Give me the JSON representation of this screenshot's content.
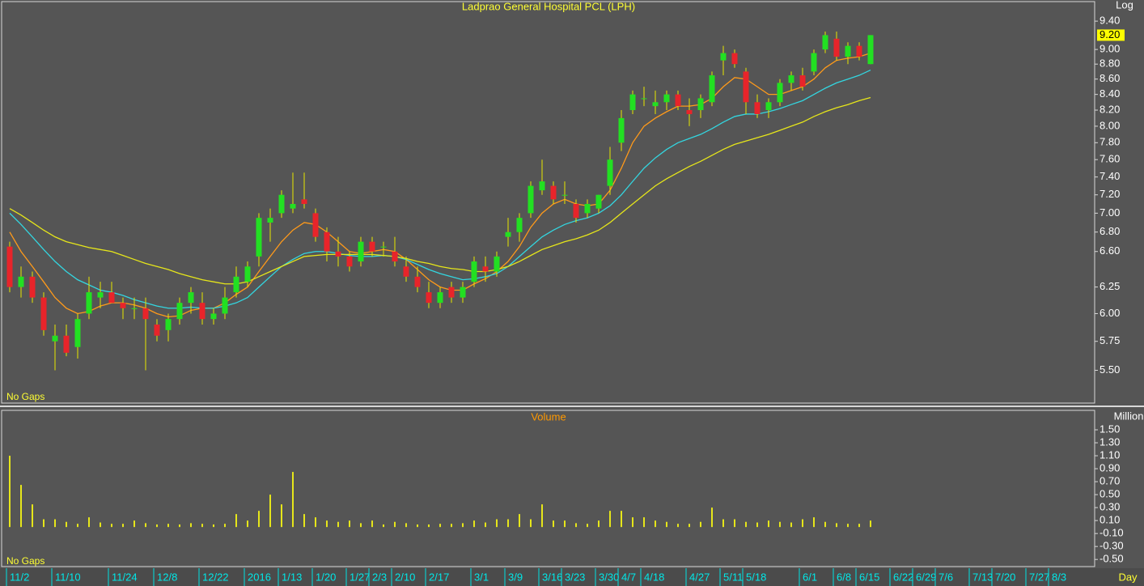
{
  "chart_data": [
    {
      "type": "candlestick",
      "title": "Ladprao General Hospital PCL (LPH)",
      "scale_label": "Log",
      "note": "No Gaps",
      "x_unit": "Day",
      "log_scale": true,
      "ylim": [
        5.23,
        9.71
      ],
      "yticks": [
        {
          "value": 9.4,
          "label": "9.40"
        },
        {
          "value": 9.0,
          "label": "9.00"
        },
        {
          "value": 8.8,
          "label": "8.80"
        },
        {
          "value": 8.6,
          "label": "8.60"
        },
        {
          "value": 8.4,
          "label": "8.40"
        },
        {
          "value": 8.2,
          "label": "8.20"
        },
        {
          "value": 8.0,
          "label": "8.00"
        },
        {
          "value": 7.8,
          "label": "7.80"
        },
        {
          "value": 7.6,
          "label": "7.60"
        },
        {
          "value": 7.4,
          "label": "7.40"
        },
        {
          "value": 7.2,
          "label": "7.20"
        },
        {
          "value": 7.0,
          "label": "7.00"
        },
        {
          "value": 6.8,
          "label": "6.80"
        },
        {
          "value": 6.6,
          "label": "6.60"
        },
        {
          "value": 6.25,
          "label": "6.25"
        },
        {
          "value": 6.0,
          "label": "6.00"
        },
        {
          "value": 5.75,
          "label": "5.75"
        },
        {
          "value": 5.5,
          "label": "5.50"
        }
      ],
      "last_price": {
        "value": 9.2,
        "label": "9.20"
      },
      "up_color": "#22e022",
      "down_color": "#e8242a",
      "wick_color": "#e6e600",
      "x": [
        "11/2",
        null,
        null,
        null,
        "11/10",
        null,
        null,
        null,
        null,
        "11/24",
        null,
        null,
        null,
        "12/8",
        null,
        null,
        null,
        "12/22",
        null,
        null,
        null,
        "2016",
        null,
        null,
        "1/13",
        null,
        null,
        "1/20",
        null,
        null,
        "1/27",
        null,
        "2/3",
        null,
        "2/10",
        null,
        null,
        "2/17",
        null,
        null,
        null,
        "3/1",
        null,
        null,
        "3/9",
        null,
        null,
        "3/16",
        null,
        "3/23",
        null,
        null,
        "3/30",
        null,
        "4/7",
        null,
        "4/18",
        null,
        null,
        null,
        "4/27",
        null,
        null,
        "5/11",
        null,
        "5/18",
        null,
        null,
        null,
        null,
        "6/1",
        null,
        null,
        "6/8",
        null,
        "6/15",
        null,
        null,
        "6/22",
        null,
        "6/29",
        null,
        "7/6",
        null,
        null,
        "7/13",
        null,
        "7/20",
        null,
        null,
        "7/27",
        null,
        "8/3",
        null,
        null,
        null
      ],
      "ohlc": [
        [
          6.65,
          6.7,
          6.2,
          6.25
        ],
        [
          6.25,
          6.45,
          6.15,
          6.35
        ],
        [
          6.35,
          6.4,
          6.1,
          6.15
        ],
        [
          6.15,
          6.2,
          5.8,
          5.85
        ],
        [
          5.75,
          5.9,
          5.5,
          5.8
        ],
        [
          5.8,
          5.9,
          5.62,
          5.65
        ],
        [
          5.7,
          6.0,
          5.6,
          5.95
        ],
        [
          6.0,
          6.35,
          5.95,
          6.2
        ],
        [
          6.15,
          6.3,
          6.05,
          6.2
        ],
        [
          6.2,
          6.3,
          6.1,
          6.1
        ],
        [
          6.1,
          6.15,
          5.95,
          6.05
        ],
        [
          6.05,
          6.15,
          5.95,
          6.05
        ],
        [
          6.05,
          6.15,
          5.5,
          5.95
        ],
        [
          5.9,
          5.95,
          5.75,
          5.8
        ],
        [
          5.85,
          6.0,
          5.75,
          5.95
        ],
        [
          5.95,
          6.15,
          5.9,
          6.1
        ],
        [
          6.1,
          6.25,
          6.0,
          6.2
        ],
        [
          6.1,
          6.2,
          5.9,
          5.95
        ],
        [
          5.95,
          6.05,
          5.9,
          6.0
        ],
        [
          6.0,
          6.25,
          5.95,
          6.15
        ],
        [
          6.2,
          6.45,
          6.15,
          6.35
        ],
        [
          6.3,
          6.5,
          6.25,
          6.45
        ],
        [
          6.55,
          7.0,
          6.45,
          6.95
        ],
        [
          6.9,
          7.05,
          6.7,
          6.95
        ],
        [
          7.0,
          7.25,
          6.95,
          7.2
        ],
        [
          7.05,
          7.45,
          7.0,
          7.1
        ],
        [
          7.15,
          7.45,
          7.05,
          7.1
        ],
        [
          7.0,
          7.05,
          6.7,
          6.75
        ],
        [
          6.8,
          6.85,
          6.5,
          6.6
        ],
        [
          6.6,
          6.75,
          6.45,
          6.55
        ],
        [
          6.55,
          6.6,
          6.4,
          6.45
        ],
        [
          6.5,
          6.75,
          6.45,
          6.7
        ],
        [
          6.7,
          6.75,
          6.55,
          6.6
        ],
        [
          6.65,
          6.7,
          6.55,
          6.65
        ],
        [
          6.6,
          6.75,
          6.45,
          6.5
        ],
        [
          6.45,
          6.55,
          6.3,
          6.35
        ],
        [
          6.35,
          6.45,
          6.2,
          6.25
        ],
        [
          6.2,
          6.3,
          6.05,
          6.1
        ],
        [
          6.1,
          6.25,
          6.05,
          6.2
        ],
        [
          6.25,
          6.3,
          6.1,
          6.15
        ],
        [
          6.15,
          6.3,
          6.1,
          6.25
        ],
        [
          6.3,
          6.55,
          6.25,
          6.5
        ],
        [
          6.45,
          6.55,
          6.3,
          6.4
        ],
        [
          6.4,
          6.6,
          6.35,
          6.55
        ],
        [
          6.75,
          6.95,
          6.65,
          6.8
        ],
        [
          6.8,
          7.0,
          6.7,
          6.95
        ],
        [
          7.0,
          7.35,
          6.95,
          7.3
        ],
        [
          7.25,
          7.6,
          7.2,
          7.35
        ],
        [
          7.3,
          7.35,
          7.1,
          7.15
        ],
        [
          7.2,
          7.35,
          7.1,
          7.2
        ],
        [
          7.1,
          7.15,
          6.9,
          6.95
        ],
        [
          7.0,
          7.15,
          6.95,
          7.1
        ],
        [
          7.05,
          7.2,
          7.0,
          7.2
        ],
        [
          7.3,
          7.75,
          7.2,
          7.6
        ],
        [
          7.8,
          8.2,
          7.7,
          8.1
        ],
        [
          8.2,
          8.45,
          8.15,
          8.4
        ],
        [
          8.35,
          8.5,
          8.25,
          8.35
        ],
        [
          8.25,
          8.45,
          8.15,
          8.3
        ],
        [
          8.3,
          8.45,
          8.2,
          8.4
        ],
        [
          8.4,
          8.45,
          8.2,
          8.25
        ],
        [
          8.2,
          8.35,
          8.0,
          8.15
        ],
        [
          8.2,
          8.4,
          8.1,
          8.35
        ],
        [
          8.3,
          8.7,
          8.25,
          8.65
        ],
        [
          8.85,
          9.05,
          8.65,
          8.95
        ],
        [
          8.95,
          9.0,
          8.75,
          8.8
        ],
        [
          8.7,
          8.75,
          8.15,
          8.3
        ],
        [
          8.3,
          8.4,
          8.1,
          8.15
        ],
        [
          8.2,
          8.35,
          8.1,
          8.3
        ],
        [
          8.3,
          8.6,
          8.25,
          8.55
        ],
        [
          8.55,
          8.7,
          8.45,
          8.65
        ],
        [
          8.65,
          8.75,
          8.45,
          8.5
        ],
        [
          8.7,
          9.0,
          8.65,
          8.95
        ],
        [
          9.0,
          9.25,
          8.95,
          9.2
        ],
        [
          9.15,
          9.25,
          8.85,
          8.9
        ],
        [
          8.9,
          9.1,
          8.8,
          9.05
        ],
        [
          9.05,
          9.1,
          8.85,
          8.9
        ],
        [
          8.8,
          9.2,
          8.8,
          9.2
        ],
        null,
        null,
        null,
        null,
        null,
        null,
        null,
        null,
        null,
        null,
        null,
        null,
        null,
        null,
        null,
        null,
        null,
        null,
        null
      ],
      "series": [
        {
          "color": "#ff9a1a",
          "values": [
            6.8,
            6.6,
            6.45,
            6.3,
            6.15,
            6.05,
            6.0,
            6.02,
            6.07,
            6.1,
            6.1,
            6.08,
            6.05,
            6.0,
            5.97,
            5.98,
            6.03,
            6.05,
            6.05,
            6.1,
            6.18,
            6.25,
            6.4,
            6.55,
            6.7,
            6.82,
            6.9,
            6.88,
            6.8,
            6.7,
            6.6,
            6.58,
            6.6,
            6.62,
            6.6,
            6.52,
            6.42,
            6.32,
            6.25,
            6.22,
            6.22,
            6.28,
            6.33,
            6.4,
            6.5,
            6.65,
            6.85,
            7.0,
            7.1,
            7.15,
            7.1,
            7.08,
            7.1,
            7.25,
            7.5,
            7.8,
            8.0,
            8.1,
            8.18,
            8.25,
            8.25,
            8.27,
            8.35,
            8.5,
            8.62,
            8.6,
            8.5,
            8.4,
            8.4,
            8.45,
            8.5,
            8.6,
            8.75,
            8.85,
            8.88,
            8.9,
            8.95,
            null,
            null,
            null,
            null,
            null,
            null,
            null,
            null,
            null,
            null,
            null,
            null,
            null,
            null,
            null,
            null,
            null,
            null,
            null
          ]
        },
        {
          "color": "#33d6e0",
          "values": [
            7.0,
            6.88,
            6.75,
            6.62,
            6.5,
            6.4,
            6.32,
            6.27,
            6.22,
            6.2,
            6.17,
            6.13,
            6.1,
            6.07,
            6.05,
            6.05,
            6.06,
            6.05,
            6.05,
            6.07,
            6.1,
            6.15,
            6.25,
            6.35,
            6.45,
            6.52,
            6.58,
            6.6,
            6.6,
            6.58,
            6.56,
            6.55,
            6.55,
            6.56,
            6.55,
            6.52,
            6.47,
            6.42,
            6.38,
            6.35,
            6.32,
            6.33,
            6.35,
            6.38,
            6.45,
            6.55,
            6.65,
            6.75,
            6.82,
            6.88,
            6.92,
            6.95,
            7.0,
            7.08,
            7.2,
            7.35,
            7.5,
            7.62,
            7.72,
            7.8,
            7.85,
            7.9,
            7.97,
            8.05,
            8.12,
            8.15,
            8.15,
            8.18,
            8.22,
            8.27,
            8.32,
            8.4,
            8.48,
            8.55,
            8.6,
            8.65,
            8.72,
            null,
            null,
            null,
            null,
            null,
            null,
            null,
            null,
            null,
            null,
            null,
            null,
            null,
            null,
            null,
            null,
            null,
            null,
            null
          ]
        },
        {
          "color": "#e6e61a",
          "values": [
            7.05,
            6.98,
            6.9,
            6.82,
            6.75,
            6.7,
            6.67,
            6.64,
            6.62,
            6.6,
            6.56,
            6.52,
            6.48,
            6.45,
            6.42,
            6.38,
            6.35,
            6.32,
            6.3,
            6.28,
            6.28,
            6.3,
            6.35,
            6.4,
            6.45,
            6.5,
            6.55,
            6.56,
            6.57,
            6.57,
            6.57,
            6.57,
            6.57,
            6.56,
            6.55,
            6.53,
            6.5,
            6.48,
            6.45,
            6.43,
            6.42,
            6.4,
            6.4,
            6.42,
            6.45,
            6.5,
            6.56,
            6.62,
            6.66,
            6.7,
            6.73,
            6.77,
            6.82,
            6.9,
            7.0,
            7.1,
            7.2,
            7.3,
            7.38,
            7.45,
            7.52,
            7.58,
            7.65,
            7.72,
            7.78,
            7.82,
            7.86,
            7.9,
            7.95,
            8.0,
            8.05,
            8.12,
            8.18,
            8.23,
            8.27,
            8.32,
            8.36,
            null,
            null,
            null,
            null,
            null,
            null,
            null,
            null,
            null,
            null,
            null,
            null,
            null,
            null,
            null,
            null,
            null,
            null,
            null
          ]
        }
      ]
    },
    {
      "type": "bar",
      "title": "Volume",
      "scale_label": "Million",
      "note": "No Gaps",
      "color": "#e6e61a",
      "ylim": [
        -0.61,
        1.8
      ],
      "yticks": [
        {
          "value": 1.5,
          "label": "1.50"
        },
        {
          "value": 1.3,
          "label": "1.30"
        },
        {
          "value": 1.1,
          "label": "1.10"
        },
        {
          "value": 0.9,
          "label": "0.90"
        },
        {
          "value": 0.7,
          "label": "0.70"
        },
        {
          "value": 0.5,
          "label": "0.50"
        },
        {
          "value": 0.3,
          "label": "0.30"
        },
        {
          "value": 0.1,
          "label": "0.10"
        },
        {
          "value": -0.1,
          "label": "-0.10"
        },
        {
          "value": -0.3,
          "label": "-0.30"
        },
        {
          "value": -0.5,
          "label": "-0.50"
        }
      ],
      "values": [
        1.1,
        0.65,
        0.35,
        0.12,
        0.12,
        0.08,
        0.05,
        0.15,
        0.07,
        0.05,
        0.05,
        0.1,
        0.06,
        0.04,
        0.05,
        0.04,
        0.06,
        0.05,
        0.04,
        0.05,
        0.2,
        0.1,
        0.25,
        0.5,
        0.35,
        0.85,
        0.2,
        0.15,
        0.1,
        0.08,
        0.1,
        0.06,
        0.1,
        0.04,
        0.08,
        0.06,
        0.04,
        0.04,
        0.05,
        0.05,
        0.06,
        0.1,
        0.07,
        0.12,
        0.12,
        0.2,
        0.12,
        0.35,
        0.1,
        0.1,
        0.06,
        0.05,
        0.1,
        0.25,
        0.25,
        0.15,
        0.15,
        0.1,
        0.08,
        0.05,
        0.05,
        0.08,
        0.3,
        0.12,
        0.12,
        0.08,
        0.07,
        0.1,
        0.08,
        0.07,
        0.12,
        0.15,
        0.08,
        0.06,
        0.05,
        0.05,
        0.1,
        null,
        null,
        null,
        null,
        null,
        null,
        null,
        null,
        null,
        null,
        null,
        null,
        null,
        null,
        null,
        null,
        null,
        null,
        null
      ]
    }
  ]
}
